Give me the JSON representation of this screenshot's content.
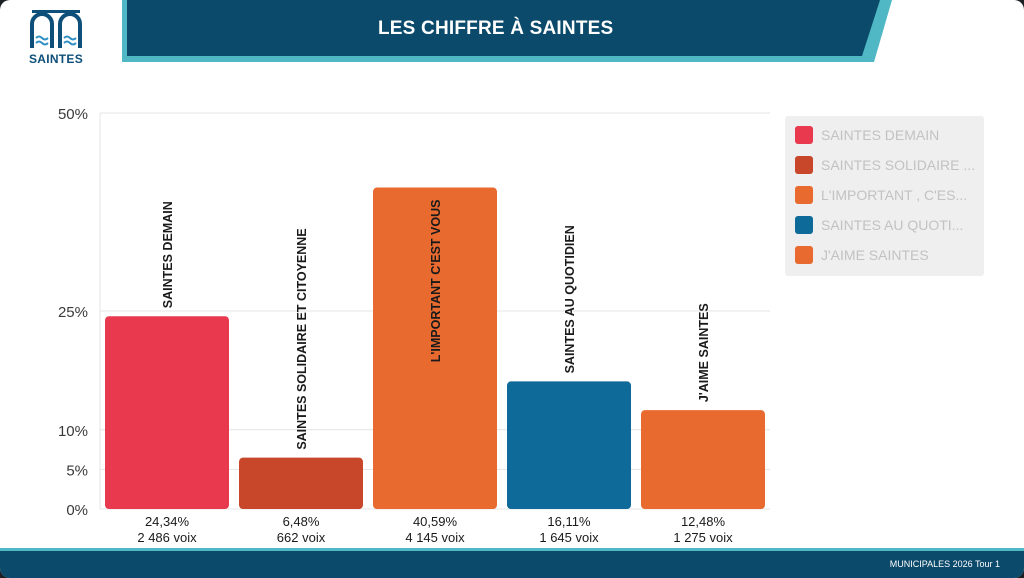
{
  "header": {
    "title": "LES CHIFFRE À SAINTES",
    "logo_text": "SAINTES"
  },
  "footer": {
    "text": "MUNICIPALES 2026 Tour 1"
  },
  "colors": {
    "navy": "#0b4a6a",
    "teal": "#4fb8c4",
    "footer": "#0b4a6a"
  },
  "chart_data": {
    "type": "bar",
    "title": "LES CHIFFRE À SAINTES",
    "categories": [
      "SAINTES DEMAIN",
      "SAINTES SOLIDAIRE ET CITOYENNE",
      "L'IMPORTANT C'EST VOUS",
      "SAINTES AU QUOTIDIEN",
      "J'AIME SAINTES"
    ],
    "values": [
      24.34,
      6.48,
      40.59,
      16.11,
      12.48
    ],
    "percent_labels": [
      "24,34%",
      "6,48%",
      "40,59%",
      "16,11%",
      "12,48%"
    ],
    "vote_labels": [
      "2 486 voix",
      "662 voix",
      "4 145 voix",
      "1 645 voix",
      "1 275 voix"
    ],
    "bar_colors": [
      "#e8394f",
      "#c84629",
      "#e96a2f",
      "#0d6a99",
      "#e96a2f"
    ],
    "y_ticks": [
      0,
      5,
      10,
      25,
      50
    ],
    "y_tick_labels": [
      "0%",
      "5%",
      "10%",
      "25%",
      "50%"
    ],
    "ylim": [
      0,
      50
    ],
    "legend": {
      "position": "right",
      "entries": [
        "SAINTES DEMAIN",
        "SAINTES SOLIDAIRE ...",
        "L'IMPORTANT , C'ES...",
        "SAINTES AU QUOTI...",
        "J'AIME SAINTES"
      ],
      "colors": [
        "#e8394f",
        "#c84629",
        "#e96a2f",
        "#0d6a99",
        "#e96a2f"
      ]
    }
  }
}
